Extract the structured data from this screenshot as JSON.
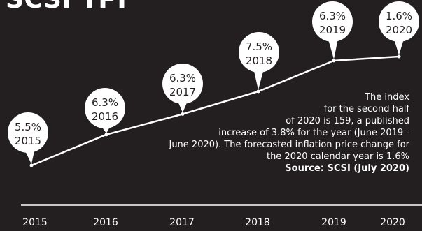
{
  "title": "SCSI TPI",
  "chart_data": {
    "type": "line",
    "x": [
      2015,
      2016,
      2017,
      2018,
      2019,
      2020
    ],
    "tick_labels": [
      "2015",
      "2016",
      "2017",
      "2018",
      "2019",
      "2020"
    ],
    "values": [
      4,
      5.5,
      6.5,
      7.6,
      9.1,
      9.3
    ],
    "bubbles": [
      {
        "pct": "5.5%",
        "year": "2015"
      },
      {
        "pct": "6.3%",
        "year": "2016"
      },
      {
        "pct": "6.3%",
        "year": "2017"
      },
      {
        "pct": "7.5%",
        "year": "2018"
      },
      {
        "pct": "6.3%",
        "year": "2019"
      },
      {
        "pct": "1.6%",
        "year": "2020"
      }
    ],
    "grid": false
  },
  "description": {
    "lines": [
      "The index",
      "for the second half",
      "of 2020 is 159, a published",
      "increase of 3.8% for the year (June 2019 -",
      "June 2020). The forecasted inflation price change for",
      "the 2020 calendar year is 1.6%"
    ],
    "source": "Source: SCSI (July 2020)"
  },
  "colors": {
    "background": "#231f20",
    "line": "#ffffff",
    "bubble": "#ffffff",
    "text": "#ffffff",
    "bubble_text": "#231f20"
  }
}
